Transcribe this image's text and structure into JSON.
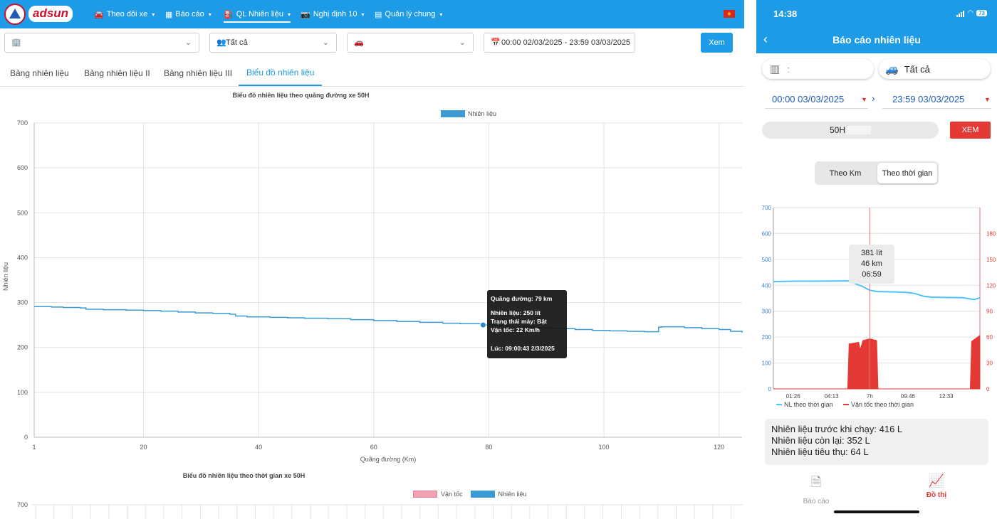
{
  "web": {
    "brand": "adsun",
    "nav": [
      {
        "icon": "car-icon",
        "label": "Theo dõi xe"
      },
      {
        "icon": "report-icon",
        "label": "Báo cáo"
      },
      {
        "icon": "fuel-icon",
        "label": "QL Nhiên liệu"
      },
      {
        "icon": "camera-icon",
        "label": "Nghị định 10"
      },
      {
        "icon": "grid-icon",
        "label": "Quản lý chung"
      }
    ],
    "filters": {
      "company": "",
      "group": "Tất cả",
      "vehicle": "",
      "daterange": "00:00 02/03/2025 - 23:59 03/03/2025"
    },
    "view_button": "Xem",
    "tabs": [
      "Bảng nhiên liệu",
      "Bảng nhiên liệu II",
      "Bảng nhiên liệu III",
      "Biểu đồ nhiên liệu"
    ],
    "chart2_title": "Biểu đồ nhiên liệu theo thời gian xe 50H",
    "chart2_legend": [
      "Vận tốc",
      "Nhiên liệu"
    ],
    "chart2_ytick_top": "700",
    "tooltip": {
      "distance": "Quãng đường: 79 km",
      "fuel": "Nhiên liệu: 250 lít",
      "engine": "Trạng thái máy: Bật",
      "speed": "Vận tốc: 22 Km/h",
      "time": "Lúc: 09:00:43 2/3/2025"
    },
    "colors": {
      "primary": "#1e9be6",
      "fuel_line": "#3a9bd5",
      "speed": "#f4a3b4"
    }
  },
  "mobile": {
    "status_time": "14:38",
    "battery": "73",
    "title": "Báo cáo nhiên liệu",
    "company_placeholder": ":",
    "group": "Tất cả",
    "from": "00:00 03/03/2025",
    "to": "23:59 03/03/2025",
    "plate": "50H",
    "view_button": "XEM",
    "segment": [
      "Theo Km",
      "Theo thời gian"
    ],
    "tooltip": {
      "fuel": "381 lít",
      "distance": "46 km",
      "time": "06:59"
    },
    "summary": {
      "before": "Nhiên liệu trước khi chạy: 416 L",
      "remaining": "Nhiên liệu còn lại: 352 L",
      "consumed": "Nhiên liệu tiêu thụ: 64 L"
    },
    "bottom_nav": [
      {
        "icon": "document-icon",
        "label": "Báo cáo"
      },
      {
        "icon": "chart-icon",
        "label": "Đồ thị"
      }
    ],
    "colors": {
      "fuel": "#4fc3f7",
      "speed": "#e53935",
      "active": "#e53935"
    }
  },
  "chart_data": [
    {
      "type": "line",
      "title": "Biểu đồ nhiên liệu theo quãng đường xe 50H",
      "legend": [
        "Nhiên liệu"
      ],
      "xlabel": "Quãng đường (Km)",
      "ylabel": "Nhiên liệu",
      "xlim": [
        1,
        124
      ],
      "ylim": [
        0,
        700
      ],
      "x_ticks": [
        1,
        20,
        40,
        60,
        80,
        100,
        120
      ],
      "y_ticks": [
        0,
        100,
        200,
        300,
        400,
        500,
        600,
        700
      ],
      "series": [
        {
          "name": "Nhiên liệu",
          "points": [
            [
              1,
              291
            ],
            [
              4,
              290
            ],
            [
              6,
              289
            ],
            [
              9,
              288
            ],
            [
              10,
              285
            ],
            [
              13,
              284
            ],
            [
              17,
              283
            ],
            [
              20,
              282
            ],
            [
              23,
              281
            ],
            [
              26,
              279
            ],
            [
              29,
              277
            ],
            [
              32,
              276
            ],
            [
              35,
              274
            ],
            [
              36,
              270
            ],
            [
              38,
              268
            ],
            [
              42,
              267
            ],
            [
              45,
              266
            ],
            [
              48,
              265
            ],
            [
              52,
              264
            ],
            [
              56,
              262
            ],
            [
              60,
              260
            ],
            [
              64,
              258
            ],
            [
              68,
              256
            ],
            [
              72,
              254
            ],
            [
              75,
              253
            ],
            [
              79,
              250
            ],
            [
              82,
              248
            ],
            [
              85,
              246
            ],
            [
              88,
              244
            ],
            [
              91,
              242
            ],
            [
              95,
              240
            ],
            [
              98,
              238
            ],
            [
              101,
              237
            ],
            [
              104,
              236
            ],
            [
              107,
              235
            ],
            [
              109,
              235
            ],
            [
              109.5,
              245
            ],
            [
              110,
              246
            ],
            [
              114,
              244
            ],
            [
              117,
              242
            ],
            [
              120,
              240
            ],
            [
              122,
              236
            ],
            [
              124,
              233
            ]
          ]
        }
      ]
    },
    {
      "type": "line",
      "title": "",
      "legend": [
        "NL theo thời gian",
        "Vận tốc theo thời gian"
      ],
      "x_ticks": [
        "01:26",
        "04:13",
        "7h",
        "09:46",
        "12:33"
      ],
      "xlim_hours": [
        0,
        15
      ],
      "y_left": [
        0,
        100,
        200,
        300,
        400,
        500,
        600,
        700
      ],
      "y_right": [
        0,
        30,
        60,
        90,
        120,
        150,
        180
      ],
      "series": [
        {
          "name": "NL theo thời gian",
          "axis": "left",
          "points": [
            [
              0,
              414
            ],
            [
              1.5,
              416
            ],
            [
              3,
              416
            ],
            [
              5.6,
              417
            ],
            [
              6.0,
              405
            ],
            [
              6.5,
              395
            ],
            [
              7.0,
              381
            ],
            [
              7.5,
              376
            ],
            [
              9,
              374
            ],
            [
              9.8,
              372
            ],
            [
              10.3,
              368
            ],
            [
              10.9,
              358
            ],
            [
              11.5,
              354
            ],
            [
              12.5,
              353
            ],
            [
              13.8,
              352
            ],
            [
              14.2,
              348
            ],
            [
              14.6,
              345
            ],
            [
              15,
              352
            ]
          ]
        },
        {
          "name": "Vận tốc theo thời gian",
          "axis": "right",
          "points": [
            [
              0,
              0
            ],
            [
              5.4,
              0
            ],
            [
              5.5,
              52
            ],
            [
              6.2,
              54
            ],
            [
              6.3,
              45
            ],
            [
              6.5,
              56
            ],
            [
              7.0,
              58
            ],
            [
              7.5,
              56
            ],
            [
              7.6,
              0
            ],
            [
              14.3,
              0
            ],
            [
              14.4,
              55
            ],
            [
              15,
              62
            ]
          ]
        }
      ]
    }
  ]
}
